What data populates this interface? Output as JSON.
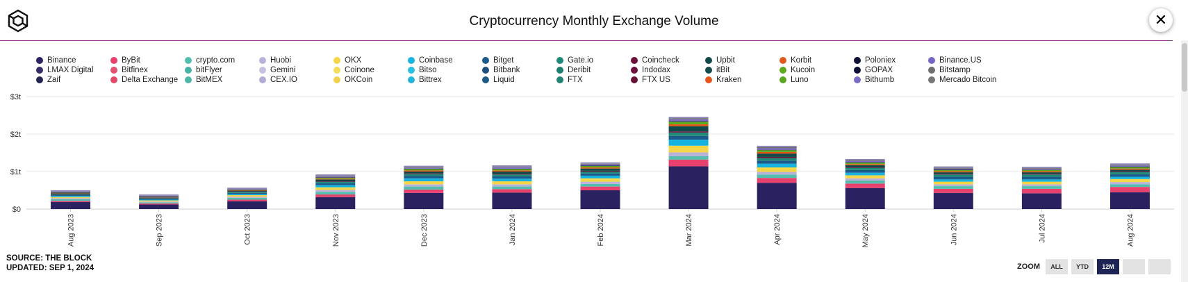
{
  "title": "Cryptocurrency Monthly Exchange Volume",
  "close_label": "✕",
  "source": {
    "line1": "SOURCE: THE BLOCK",
    "line2": "UPDATED: SEP 1, 2024"
  },
  "zoom": {
    "label": "ZOOM",
    "buttons": [
      "ALL",
      "YTD",
      "12M",
      "",
      ""
    ],
    "active": "12M"
  },
  "colors": {
    "accent_rule": "#8a3d8c",
    "grid": "#e6e6e6"
  },
  "chart_data": {
    "type": "bar",
    "stacked": true,
    "title": "Cryptocurrency Monthly Exchange Volume",
    "xlabel": "",
    "ylabel": "",
    "ylim": [
      0,
      3
    ],
    "yticks": [
      0,
      1,
      2,
      3
    ],
    "ytick_labels": [
      "$0",
      "$1t",
      "$2t",
      "$3t"
    ],
    "unit": "trillion USD",
    "categories": [
      "Aug 2023",
      "Sep 2023",
      "Oct 2023",
      "Nov 2023",
      "Dec 2023",
      "Jan 2024",
      "Feb 2024",
      "Mar 2024",
      "Apr 2024",
      "May 2024",
      "Jun 2024",
      "Jul 2024",
      "Aug 2024"
    ],
    "series": [
      {
        "name": "Binance",
        "color": "#2a2160",
        "values": [
          0.19,
          0.12,
          0.21,
          0.32,
          0.43,
          0.44,
          0.5,
          1.14,
          0.7,
          0.56,
          0.43,
          0.42,
          0.45
        ]
      },
      {
        "name": "LMAX Digital",
        "color": "#372b6b",
        "values": [
          0,
          0,
          0,
          0,
          0,
          0,
          0,
          0,
          0,
          0,
          0,
          0,
          0
        ]
      },
      {
        "name": "Zaif",
        "color": "#25264f",
        "values": [
          0,
          0,
          0,
          0,
          0,
          0,
          0,
          0,
          0,
          0,
          0,
          0,
          0
        ]
      },
      {
        "name": "ByBit",
        "color": "#e8416d",
        "values": [
          0.03,
          0.03,
          0.04,
          0.07,
          0.09,
          0.09,
          0.1,
          0.18,
          0.13,
          0.12,
          0.11,
          0.12,
          0.14
        ]
      },
      {
        "name": "Bitfinex",
        "color": "#e0526f",
        "values": [
          0,
          0,
          0,
          0,
          0,
          0,
          0,
          0,
          0,
          0,
          0,
          0,
          0
        ]
      },
      {
        "name": "Delta Exchange",
        "color": "#e14a66",
        "values": [
          0,
          0,
          0,
          0,
          0,
          0,
          0,
          0,
          0,
          0,
          0,
          0,
          0
        ]
      },
      {
        "name": "crypto.com",
        "color": "#52bfae",
        "values": [
          0.04,
          0.03,
          0.05,
          0.07,
          0.08,
          0.07,
          0.07,
          0.09,
          0.09,
          0.08,
          0.07,
          0.07,
          0.07
        ]
      },
      {
        "name": "bitFlyer",
        "color": "#45b3a8",
        "values": [
          0,
          0,
          0,
          0,
          0,
          0,
          0,
          0,
          0,
          0,
          0,
          0,
          0
        ]
      },
      {
        "name": "BitMEX",
        "color": "#4db8a8",
        "values": [
          0,
          0,
          0,
          0,
          0,
          0,
          0,
          0,
          0,
          0,
          0,
          0,
          0
        ]
      },
      {
        "name": "Huobi",
        "color": "#b8b1d9",
        "values": [
          0.03,
          0.02,
          0.03,
          0.05,
          0.06,
          0.06,
          0.06,
          0.1,
          0.07,
          0.06,
          0.05,
          0.05,
          0.06
        ]
      },
      {
        "name": "Gemini",
        "color": "#c5bfe0",
        "values": [
          0,
          0,
          0,
          0,
          0,
          0,
          0,
          0,
          0,
          0,
          0,
          0,
          0
        ]
      },
      {
        "name": "CEX.IO",
        "color": "#b3aad6",
        "values": [
          0,
          0,
          0,
          0,
          0,
          0,
          0,
          0,
          0,
          0,
          0,
          0,
          0
        ]
      },
      {
        "name": "OKX",
        "color": "#f5d646",
        "values": [
          0.03,
          0.03,
          0.04,
          0.07,
          0.08,
          0.08,
          0.09,
          0.18,
          0.12,
          0.08,
          0.07,
          0.07,
          0.08
        ]
      },
      {
        "name": "Coinone",
        "color": "#f3dc5c",
        "values": [
          0,
          0,
          0,
          0,
          0,
          0,
          0,
          0,
          0,
          0,
          0,
          0,
          0
        ]
      },
      {
        "name": "OKCoin",
        "color": "#f1d04e",
        "values": [
          0,
          0,
          0,
          0,
          0,
          0,
          0,
          0,
          0,
          0,
          0,
          0,
          0
        ]
      },
      {
        "name": "Coinbase",
        "color": "#17b3e0",
        "values": [
          0.03,
          0.02,
          0.03,
          0.06,
          0.08,
          0.07,
          0.07,
          0.16,
          0.1,
          0.07,
          0.06,
          0.06,
          0.06
        ]
      },
      {
        "name": "Bitso",
        "color": "#2bbfe6",
        "values": [
          0,
          0,
          0,
          0,
          0,
          0,
          0,
          0,
          0,
          0,
          0,
          0,
          0
        ]
      },
      {
        "name": "Bittrex",
        "color": "#26b4de",
        "values": [
          0,
          0,
          0,
          0,
          0,
          0,
          0,
          0,
          0,
          0,
          0,
          0,
          0
        ]
      },
      {
        "name": "Bitget",
        "color": "#1b5b8c",
        "values": [
          0.02,
          0.02,
          0.03,
          0.05,
          0.06,
          0.06,
          0.06,
          0.1,
          0.08,
          0.07,
          0.07,
          0.07,
          0.07
        ]
      },
      {
        "name": "Bitbank",
        "color": "#1d4f7d",
        "values": [
          0,
          0,
          0,
          0,
          0,
          0,
          0,
          0,
          0,
          0,
          0,
          0,
          0
        ]
      },
      {
        "name": "Liquid",
        "color": "#1a5a85",
        "values": [
          0,
          0,
          0,
          0,
          0,
          0,
          0,
          0,
          0,
          0,
          0,
          0,
          0
        ]
      },
      {
        "name": "Gate.io",
        "color": "#1f8a78",
        "values": [
          0.02,
          0.02,
          0.03,
          0.04,
          0.05,
          0.05,
          0.05,
          0.09,
          0.07,
          0.06,
          0.06,
          0.06,
          0.06
        ]
      },
      {
        "name": "Deribit",
        "color": "#1d8070",
        "values": [
          0,
          0,
          0,
          0,
          0,
          0,
          0,
          0,
          0,
          0,
          0,
          0,
          0
        ]
      },
      {
        "name": "FTX",
        "color": "#218474",
        "values": [
          0,
          0,
          0,
          0,
          0,
          0,
          0,
          0,
          0,
          0,
          0,
          0,
          0
        ]
      },
      {
        "name": "Coincheck",
        "color": "#6b0f3a",
        "values": [
          0.01,
          0.01,
          0.01,
          0.02,
          0.02,
          0.02,
          0.02,
          0.03,
          0.03,
          0.02,
          0.02,
          0.02,
          0.02
        ]
      },
      {
        "name": "Indodax",
        "color": "#6e1040",
        "values": [
          0,
          0,
          0,
          0,
          0,
          0,
          0,
          0,
          0,
          0,
          0,
          0,
          0
        ]
      },
      {
        "name": "FTX US",
        "color": "#6a1238",
        "values": [
          0,
          0,
          0,
          0,
          0,
          0,
          0,
          0,
          0,
          0,
          0,
          0,
          0
        ]
      },
      {
        "name": "Upbit",
        "color": "#0f4a48",
        "values": [
          0.02,
          0.01,
          0.02,
          0.04,
          0.05,
          0.06,
          0.06,
          0.14,
          0.09,
          0.05,
          0.04,
          0.04,
          0.04
        ]
      },
      {
        "name": "itBit",
        "color": "#124b4a",
        "values": [
          0,
          0,
          0,
          0,
          0,
          0,
          0,
          0,
          0,
          0,
          0,
          0,
          0
        ]
      },
      {
        "name": "Kraken",
        "color": "#e8551a",
        "values": [
          0.01,
          0.01,
          0.01,
          0.02,
          0.03,
          0.03,
          0.03,
          0.05,
          0.04,
          0.03,
          0.03,
          0.03,
          0.03
        ]
      },
      {
        "name": "Korbit",
        "color": "#e0591f",
        "values": [
          0,
          0,
          0,
          0,
          0,
          0,
          0,
          0,
          0,
          0,
          0,
          0,
          0
        ]
      },
      {
        "name": "Kucoin",
        "color": "#5caa1d",
        "values": [
          0.01,
          0.01,
          0.01,
          0.03,
          0.04,
          0.04,
          0.04,
          0.07,
          0.05,
          0.04,
          0.03,
          0.03,
          0.04
        ]
      },
      {
        "name": "Luno",
        "color": "#5aa722",
        "values": [
          0,
          0,
          0,
          0,
          0,
          0,
          0,
          0,
          0,
          0,
          0,
          0,
          0
        ]
      },
      {
        "name": "Poloniex",
        "color": "#0c0e33",
        "values": [
          0.003,
          0.003,
          0.004,
          0.006,
          0.008,
          0.008,
          0.008,
          0.012,
          0.01,
          0.008,
          0.02,
          0.01,
          0.01
        ]
      },
      {
        "name": "GOPAX",
        "color": "#0d1035",
        "values": [
          0,
          0,
          0,
          0,
          0,
          0,
          0,
          0,
          0,
          0,
          0,
          0,
          0
        ]
      },
      {
        "name": "Bithumb",
        "color": "#7b6cc9",
        "values": [
          0.01,
          0.01,
          0.01,
          0.02,
          0.02,
          0.03,
          0.03,
          0.05,
          0.04,
          0.03,
          0.02,
          0.02,
          0.03
        ]
      },
      {
        "name": "Binance.US",
        "color": "#7665c4",
        "values": [
          0,
          0,
          0,
          0,
          0,
          0,
          0,
          0,
          0,
          0,
          0,
          0,
          0
        ]
      },
      {
        "name": "Bitstamp",
        "color": "#6f6f6f",
        "values": [
          0.01,
          0.01,
          0.01,
          0.02,
          0.02,
          0.02,
          0.02,
          0.03,
          0.03,
          0.02,
          0.02,
          0.02,
          0.02
        ]
      },
      {
        "name": "Mercado Bitcoin",
        "color": "#777777",
        "values": [
          0,
          0,
          0,
          0,
          0,
          0,
          0,
          0,
          0,
          0,
          0,
          0,
          0
        ]
      }
    ]
  }
}
